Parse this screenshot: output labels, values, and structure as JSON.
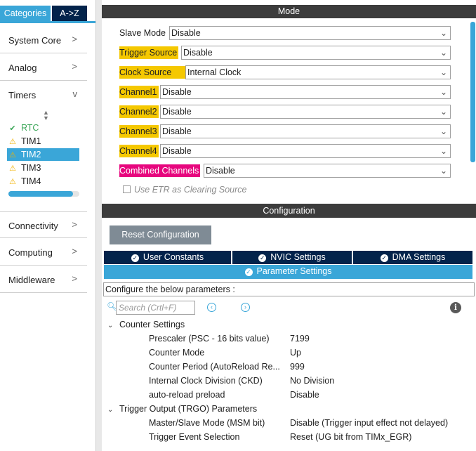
{
  "left_panel": {
    "tabs": {
      "categories": "Categories",
      "az": "A->Z"
    },
    "categories": [
      {
        "label": "System Core",
        "chevron": ">"
      },
      {
        "label": "Analog",
        "chevron": ">"
      },
      {
        "label": "Timers",
        "chevron": "v"
      },
      {
        "label": "Connectivity",
        "chevron": ">"
      },
      {
        "label": "Computing",
        "chevron": ">"
      },
      {
        "label": "Middleware",
        "chevron": ">"
      }
    ],
    "timers": [
      {
        "label": "RTC",
        "icon": "check-icon",
        "status": "ok"
      },
      {
        "label": "TIM1",
        "icon": "warning-icon",
        "status": "warning"
      },
      {
        "label": "TIM2",
        "icon": "warning-icon",
        "status": "warning",
        "selected": true
      },
      {
        "label": "TIM3",
        "icon": "warning-icon",
        "status": "warning"
      },
      {
        "label": "TIM4",
        "icon": "warning-icon",
        "status": "warning"
      }
    ],
    "scroll_position": 0.9
  },
  "mode": {
    "title": "Mode",
    "fields": [
      {
        "label": "Slave Mode",
        "value": "Disable",
        "highlight": "none"
      },
      {
        "label": "Trigger Source",
        "value": "Disable",
        "highlight": "yellow"
      },
      {
        "label": "Clock Source",
        "value": "Internal Clock",
        "highlight": "yellow"
      },
      {
        "label": "Channel1",
        "value": "Disable",
        "highlight": "yellow"
      },
      {
        "label": "Channel2",
        "value": "Disable",
        "highlight": "yellow"
      },
      {
        "label": "Channel3",
        "value": "Disable",
        "highlight": "yellow"
      },
      {
        "label": "Channel4",
        "value": "Disable",
        "highlight": "yellow"
      },
      {
        "label": "Combined Channels",
        "value": "Disable",
        "highlight": "pink"
      }
    ],
    "etr_checkbox": {
      "label": "Use ETR as Clearing Source",
      "checked": false,
      "enabled": false
    }
  },
  "configuration": {
    "title": "Configuration",
    "reset_button": "Reset Configuration",
    "tabs": [
      {
        "label": "User Constants"
      },
      {
        "label": "NVIC Settings"
      },
      {
        "label": "DMA Settings"
      },
      {
        "label": "Parameter Settings",
        "active": true
      }
    ],
    "configure_text": "Configure the below parameters :",
    "search_placeholder": "Search (Crtl+F)",
    "groups": [
      {
        "label": "Counter Settings",
        "params": [
          {
            "name": "Prescaler (PSC - 16 bits value)",
            "value": "7199"
          },
          {
            "name": "Counter Mode",
            "value": "Up"
          },
          {
            "name": "Counter Period (AutoReload Re...",
            "value": "999"
          },
          {
            "name": "Internal Clock Division (CKD)",
            "value": "No Division"
          },
          {
            "name": "auto-reload preload",
            "value": "Disable"
          }
        ]
      },
      {
        "label": "Trigger Output (TRGO) Parameters",
        "params": [
          {
            "name": "Master/Slave Mode (MSM bit)",
            "value": "Disable (Trigger input effect not delayed)"
          },
          {
            "name": "Trigger Event Selection",
            "value": "Reset (UG bit from TIMx_EGR)"
          }
        ]
      }
    ]
  },
  "colors": {
    "accent": "#3aa6d8",
    "navy": "#03234b",
    "header_bg": "#3c3c3c",
    "highlight_yellow": "#f5c800",
    "highlight_pink": "#e7067e",
    "ok_green": "#3aa657",
    "warning_yellow": "#f2b200"
  }
}
